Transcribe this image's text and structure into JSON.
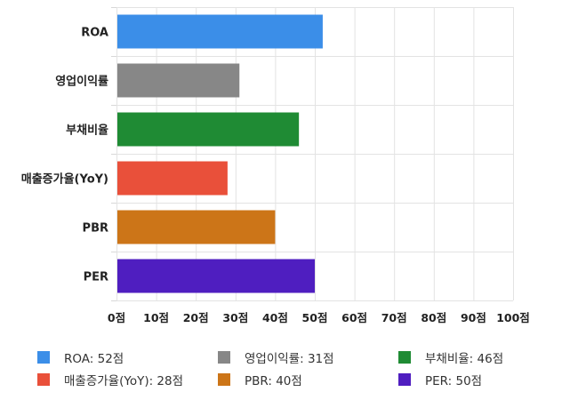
{
  "chart_data": {
    "type": "bar",
    "orientation": "horizontal",
    "categories": [
      "ROA",
      "영업이익률",
      "부채비율",
      "매출증가율(YoY)",
      "PBR",
      "PER"
    ],
    "values": [
      52,
      31,
      46,
      28,
      40,
      50
    ],
    "colors": [
      "#3b8ee8",
      "#878787",
      "#1f8b34",
      "#e9503a",
      "#cc7518",
      "#4f1ec0"
    ],
    "xlim": [
      0,
      100
    ],
    "x_ticks": [
      0,
      10,
      20,
      30,
      40,
      50,
      60,
      70,
      80,
      90,
      100
    ],
    "x_tick_labels": [
      "0점",
      "10점",
      "20점",
      "30점",
      "40점",
      "50점",
      "60점",
      "70점",
      "80점",
      "90점",
      "100점"
    ],
    "grid": true,
    "legend_position": "bottom",
    "legend_labels": [
      "ROA: 52점",
      "영업이익률: 31점",
      "부채비율: 46점",
      "매출증가율(YoY): 28점",
      "PBR: 40점",
      "PER: 50점"
    ]
  }
}
